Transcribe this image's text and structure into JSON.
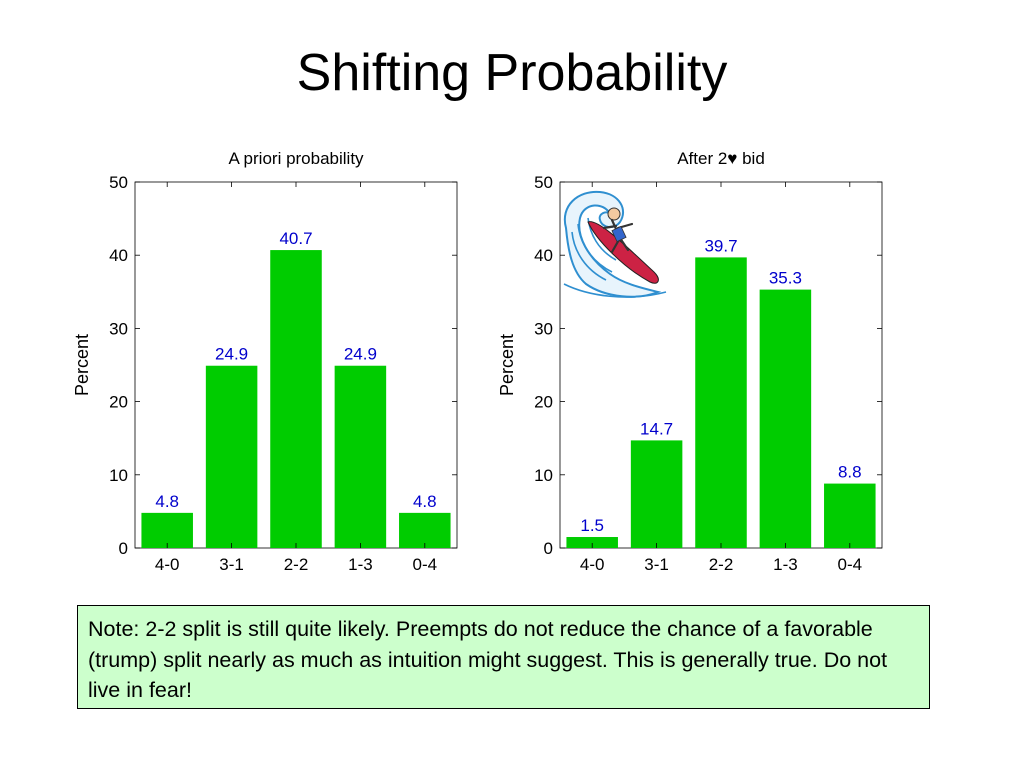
{
  "slide": {
    "title": "Shifting Probability",
    "note": "Note: 2-2 split is still quite likely. Preempts do not reduce the chance of a favorable (trump) split nearly as much as intuition might suggest. This is generally true. Do not live in fear!"
  },
  "colors": {
    "bar": "#00cc00",
    "label": "#0000cc",
    "note_bg": "#ccffcc",
    "wave_blue": "#2f8fd0",
    "surfboard": "#cc2244"
  },
  "clipart": {
    "icon": "surfer-on-wave-icon"
  },
  "chart_data": [
    {
      "type": "bar",
      "title": "A priori probability",
      "xlabel": "",
      "ylabel": "Percent",
      "categories": [
        "4-0",
        "3-1",
        "2-2",
        "1-3",
        "0-4"
      ],
      "values": [
        4.8,
        24.9,
        40.7,
        24.9,
        4.8
      ],
      "data_labels": [
        "4.8",
        "24.9",
        "40.7",
        "24.9",
        "4.8"
      ],
      "ylim": [
        0,
        50
      ],
      "yticks": [
        "0",
        "10",
        "20",
        "30",
        "40",
        "50"
      ],
      "grid": false,
      "legend": "none"
    },
    {
      "type": "bar",
      "title": "After 2♥ bid",
      "xlabel": "",
      "ylabel": "Percent",
      "categories": [
        "4-0",
        "3-1",
        "2-2",
        "1-3",
        "0-4"
      ],
      "values": [
        1.5,
        14.7,
        39.7,
        35.3,
        8.8
      ],
      "data_labels": [
        "1.5",
        "14.7",
        "39.7",
        "35.3",
        "8.8"
      ],
      "ylim": [
        0,
        50
      ],
      "yticks": [
        "0",
        "10",
        "20",
        "30",
        "40",
        "50"
      ],
      "grid": false,
      "legend": "none"
    }
  ]
}
